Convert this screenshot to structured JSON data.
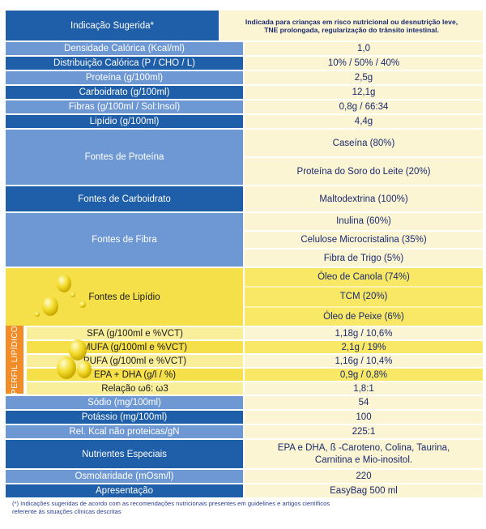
{
  "rows": {
    "indicacao": {
      "label": "Indicação Sugerida*",
      "value": "Indicada para crianças em risco nutricional ou desnutrição leve, TNE prolongada, regularização do trânsito intestinal."
    },
    "densidade": {
      "label": "Densidade Calórica (Kcal/ml)",
      "value": "1,0"
    },
    "distribuicao": {
      "label": "Distribuição Calórica (P / CHO / L)",
      "value": "10% / 50% / 40%"
    },
    "proteina": {
      "label": "Proteína (g/100ml)",
      "value": "2,5g"
    },
    "carboidrato": {
      "label": "Carboidrato (g/100ml)",
      "value": "12,1g"
    },
    "fibras": {
      "label": "Fibras (g/100ml / Sol:Insol)",
      "value": "0,8g / 66:34"
    },
    "lipidio": {
      "label": "Lipídio (g/100ml)",
      "value": "4,4g"
    },
    "fontes_proteina": {
      "label": "Fontes de Proteína",
      "values": [
        "Caseína (80%)",
        "Proteína do Soro do Leite (20%)"
      ]
    },
    "fontes_carboidrato": {
      "label": "Fontes de Carboidrato",
      "value": "Maltodextrina (100%)"
    },
    "fontes_fibra": {
      "label": "Fontes de Fibra",
      "values": [
        "Inulina (60%)",
        "Celulose Microcristalina (35%)",
        "Fibra de Trigo (5%)"
      ]
    },
    "fontes_lipidio": {
      "label": "Fontes de Lipídio",
      "values": [
        "Óleo de Canola (74%)",
        "TCM (20%)",
        "Óleo de Peixe (6%)"
      ]
    },
    "sfa": {
      "label": "SFA (g/100ml e %VCT)",
      "value": "1,18g / 10,6%"
    },
    "mufa": {
      "label": "MUFA (g/100ml e %VCT)",
      "value": "2,1g / 19%"
    },
    "pufa": {
      "label": "PUFA (g/100ml e %VCT)",
      "value": "1,16g / 10,4%"
    },
    "epa_dha": {
      "label": "EPA + DHA (g/l / %)",
      "value": "0,9g / 0,8%"
    },
    "relacao": {
      "label": "Relação ω6: ω3",
      "value": "1,8:1"
    },
    "sodio": {
      "label": "Sódio (mg/100ml)",
      "value": "54"
    },
    "potassio": {
      "label": "Potássio (mg/100ml)",
      "value": "100"
    },
    "rel_kcal": {
      "label": "Rel. Kcal não proteicas/gN",
      "value": "225:1"
    },
    "nutrientes": {
      "label": "Nutrientes Especiais",
      "value": "EPA e DHA, ß -Caroteno, Colina, Taurina, Carnitina e Mio-inositol."
    },
    "osmolaridade": {
      "label": "Osmolaridade (mOsm/l)",
      "value": "220"
    },
    "apresentacao": {
      "label": "Apresentação",
      "value": "EasyBag 500 ml"
    }
  },
  "perfil_lipidico": "PERFIL LIPÍDICO",
  "footnote": "(*) Indicações sugeridas de acordo com as recomendações nutricionais presentes em guidelines e artigos científicos referente às situações clínicas descritas",
  "colors": {
    "blue_dark": "#1f5ea8",
    "blue_light": "#6e98d3",
    "yellow": "#f5e04a",
    "cream": "#fcf5d4",
    "orange": "#f28c28"
  }
}
